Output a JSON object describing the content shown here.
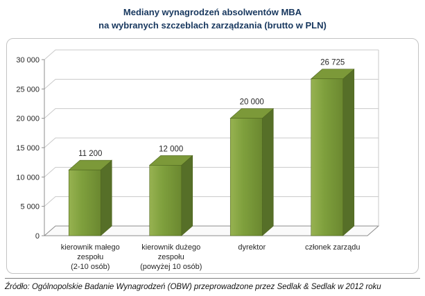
{
  "title": {
    "line1": "Mediany wynagrodzeń absolwentów MBA",
    "line2": "na wybranych szczeblach zarządzania (brutto w PLN)"
  },
  "footer": {
    "source": "Źródło: Ogólnopolskie Badanie Wynagrodzeń (OBW) przeprowadzone przez Sedlak & Sedlak w 2012 roku"
  },
  "chart_data": {
    "type": "bar",
    "style": "3d-column",
    "title": "Mediany wynagrodzeń absolwentów MBA na wybranych szczeblach zarządzania (brutto w PLN)",
    "categories": [
      "kierownik małego zespołu (2-10 osób)",
      "kierownik dużego zespołu (powyżej 10 osób)",
      "dyrektor",
      "członek zarządu"
    ],
    "categories_lines": [
      [
        "kierownik małego",
        "zespołu",
        "(2-10 osób)"
      ],
      [
        "kierownik dużego",
        "zespołu",
        "(powyżej 10 osób)"
      ],
      [
        "dyrektor"
      ],
      [
        "członek zarządu"
      ]
    ],
    "values": [
      11200,
      12000,
      20000,
      26725
    ],
    "value_labels": [
      "11 200",
      "12 000",
      "20 000",
      "26 725"
    ],
    "xlabel": "",
    "ylabel": "",
    "ylim": [
      0,
      30000
    ],
    "ytick_values": [
      0,
      5000,
      10000,
      15000,
      20000,
      25000,
      30000
    ],
    "ytick_labels": [
      "0",
      "5 000",
      "10 000",
      "15 000",
      "20 000",
      "25 000",
      "30 000"
    ],
    "grid": true,
    "legend": "none",
    "colors": {
      "bar_front_light": "#97B251",
      "bar_front": "#7FA03D",
      "bar_front_dark": "#6B8830",
      "bar_top": "#7C9939",
      "bar_side": "#566F28",
      "bar_outline": "#4F661F",
      "gridline": "#C9C9C9",
      "axis": "#8C8C8C",
      "floor_fill": "#FAFAFA",
      "title_color": "#17375E",
      "text": "#1A1A1A"
    }
  }
}
